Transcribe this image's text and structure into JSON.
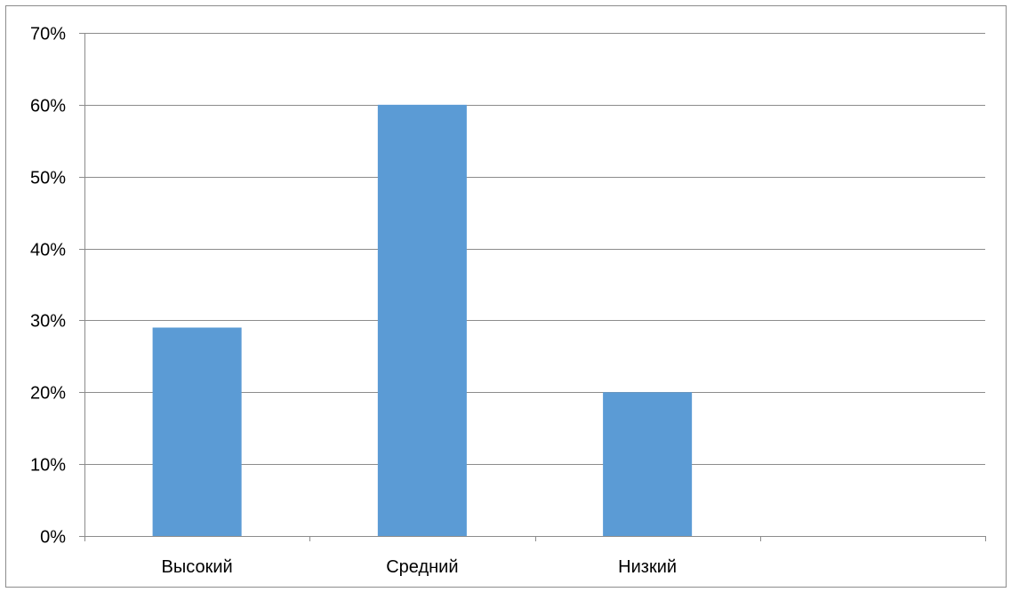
{
  "chart_data": {
    "type": "bar",
    "categories": [
      "Высокий",
      "Средний",
      "Низкий",
      ""
    ],
    "values": [
      29,
      60,
      20,
      null
    ],
    "ylim": [
      0,
      70
    ],
    "yticks": [
      0,
      10,
      20,
      30,
      40,
      50,
      60,
      70
    ],
    "ytick_labels": [
      "0%",
      "10%",
      "20%",
      "30%",
      "40%",
      "50%",
      "60%",
      "70%"
    ],
    "title": "",
    "xlabel": "",
    "ylabel": "",
    "grid": true,
    "legend": "none",
    "bar_color": "#5b9bd5"
  }
}
